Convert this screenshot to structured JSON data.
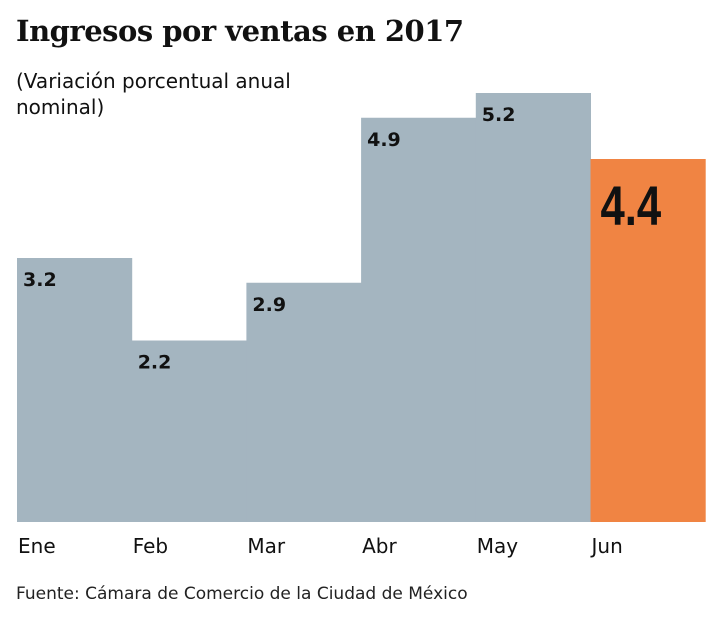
{
  "chart_data": {
    "type": "bar",
    "title": "Ingresos por ventas en 2017",
    "subtitle": "(Variación porcentual anual nominal)",
    "categories": [
      "Ene",
      "Feb",
      "Mar",
      "Abr",
      "May",
      "Jun"
    ],
    "values": [
      3.2,
      2.2,
      2.9,
      4.9,
      5.2,
      4.4
    ],
    "data_labels": [
      "3.2",
      "2.2",
      "2.9",
      "4.9",
      "5.2",
      "4.4"
    ],
    "highlight_index": 5,
    "colors": {
      "default": "#a4b5c0",
      "highlight": "#f08443"
    },
    "xlabel": "",
    "ylabel": "",
    "ylim": [
      0,
      5.2
    ],
    "grid": false,
    "source": "Fuente: Cámara de Comercio de la Ciudad de México"
  }
}
